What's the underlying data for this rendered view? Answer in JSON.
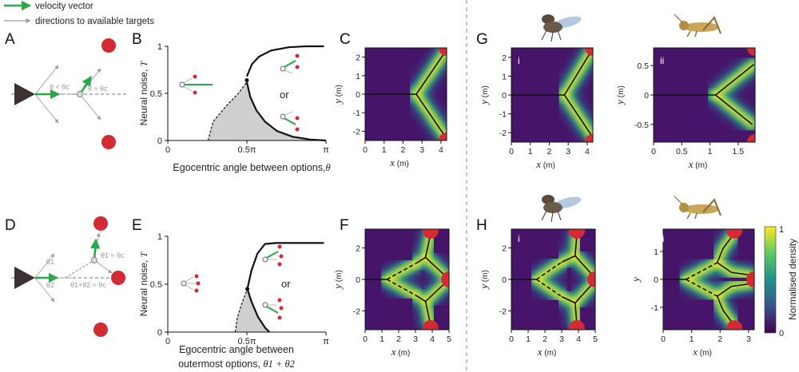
{
  "legend": {
    "velocity": "velocity vector",
    "directions": "directions to available targets",
    "velocity_color": "#2aa84a",
    "directions_color": "#9a9a9a"
  },
  "panels": {
    "A": "A",
    "B": "B",
    "C": "C",
    "D": "D",
    "E": "E",
    "F": "F",
    "G": "G",
    "H": "H",
    "Gi": "i",
    "Gii": "ii",
    "Hi": "i",
    "Hii": "ii"
  },
  "diagramA": {
    "angle_lt": "θ < θc",
    "angle_eq": "θ ≈ θc"
  },
  "diagramD": {
    "theta1": "θ1",
    "theta2": "θ2",
    "theta1_eq": "θ1 ≈ θc",
    "sum_eq": "θ1+θ2 ≈ θc"
  },
  "or_label": "or",
  "target_color": "#d42a35",
  "icons": [
    "fly-icon",
    "locust-icon"
  ],
  "chart_data": [
    {
      "id": "B",
      "type": "line",
      "xlabel": "Egocentric angle between options,",
      "xlabel_symbol": "θ",
      "ylabel": "Neural noise,",
      "ylabel_symbol": "T",
      "x_ticks": [
        "0",
        "0.5π",
        "π"
      ],
      "y_ticks": [
        "0",
        "0.5",
        "1"
      ],
      "xlim": [
        0,
        3.1416
      ],
      "ylim": [
        0,
        1
      ],
      "series": [
        {
          "style": "solid",
          "points": [
            [
              1.57,
              0.68
            ],
            [
              1.67,
              0.81
            ],
            [
              1.81,
              0.89
            ],
            [
              2.05,
              0.955
            ],
            [
              2.4,
              0.99
            ],
            [
              2.75,
              1.0
            ],
            [
              3.1,
              1.0
            ]
          ]
        },
        {
          "style": "solid",
          "points": [
            [
              1.57,
              0.62
            ],
            [
              1.64,
              0.46
            ],
            [
              1.76,
              0.32
            ],
            [
              1.93,
              0.2
            ],
            [
              2.17,
              0.1
            ],
            [
              2.48,
              0.04
            ],
            [
              2.83,
              0.01
            ],
            [
              3.14,
              0.0
            ]
          ]
        },
        {
          "style": "dashed",
          "points": [
            [
              0.8,
              0.0
            ],
            [
              0.9,
              0.2
            ],
            [
              1.15,
              0.36
            ],
            [
              1.4,
              0.5
            ],
            [
              1.57,
              0.62
            ]
          ]
        }
      ],
      "shaded": [
        [
          0.8,
          0.0
        ],
        [
          0.9,
          0.2
        ],
        [
          1.15,
          0.36
        ],
        [
          1.4,
          0.5
        ],
        [
          1.57,
          0.62
        ],
        [
          1.64,
          0.46
        ],
        [
          1.76,
          0.32
        ],
        [
          1.93,
          0.2
        ],
        [
          2.17,
          0.1
        ],
        [
          2.48,
          0.04
        ],
        [
          2.83,
          0.01
        ],
        [
          3.14,
          0.0
        ]
      ],
      "critical_point": [
        1.57,
        0.64
      ]
    },
    {
      "id": "E",
      "type": "line",
      "xlabel": "Egocentric angle between",
      "xlabel2": "outermost options,",
      "xlabel_symbol": "θ1 + θ2",
      "ylabel": "Neural noise,",
      "ylabel_symbol": "T",
      "x_ticks": [
        "0",
        "0.5π",
        "π"
      ],
      "y_ticks": [
        "0",
        "0.5",
        "1"
      ],
      "xlim": [
        0,
        3.1416
      ],
      "ylim": [
        0,
        1
      ],
      "series": [
        {
          "style": "solid",
          "points": [
            [
              1.58,
              0.45
            ],
            [
              1.66,
              0.64
            ],
            [
              1.78,
              0.82
            ],
            [
              1.93,
              0.92
            ],
            [
              2.15,
              0.93
            ],
            [
              2.6,
              0.93
            ],
            [
              3.1,
              0.93
            ]
          ]
        },
        {
          "style": "solid",
          "points": [
            [
              1.58,
              0.45
            ],
            [
              1.66,
              0.32
            ],
            [
              1.79,
              0.16
            ],
            [
              1.94,
              0.04
            ],
            [
              2.02,
              0.0
            ]
          ]
        },
        {
          "style": "dashed",
          "points": [
            [
              1.34,
              0.0
            ],
            [
              1.38,
              0.15
            ],
            [
              1.47,
              0.3
            ],
            [
              1.58,
              0.45
            ]
          ]
        }
      ],
      "shaded": [
        [
          1.34,
          0.0
        ],
        [
          1.38,
          0.15
        ],
        [
          1.47,
          0.3
        ],
        [
          1.58,
          0.45
        ],
        [
          1.66,
          0.32
        ],
        [
          1.79,
          0.16
        ],
        [
          1.94,
          0.04
        ],
        [
          2.02,
          0.0
        ]
      ],
      "critical_point": [
        1.58,
        0.45
      ]
    },
    {
      "id": "C",
      "type": "heatmap",
      "xlabel": "x",
      "xunit": "(m)",
      "ylabel": "y",
      "yunit": "(m)",
      "x_ticks": [
        "0",
        "1",
        "2",
        "3",
        "4"
      ],
      "y_ticks": [
        "-2",
        "-1",
        "0",
        "1",
        "2"
      ],
      "xlim": [
        0,
        4.3
      ],
      "ylim": [
        -2.5,
        2.5
      ],
      "targets": [
        [
          4.3,
          2.5
        ],
        [
          4.3,
          -2.5
        ]
      ],
      "trajectory": {
        "style": "solid",
        "paths": [
          [
            [
              0,
              0
            ],
            [
              2.7,
              0
            ]
          ],
          [
            [
              2.7,
              0
            ],
            [
              4.3,
              2.4
            ]
          ],
          [
            [
              2.7,
              0
            ],
            [
              4.3,
              -2.4
            ]
          ]
        ]
      }
    },
    {
      "id": "F",
      "type": "heatmap",
      "xlabel": "x",
      "xunit": "(m)",
      "ylabel": "y",
      "yunit": "(m)",
      "x_ticks": [
        "0",
        "1",
        "2",
        "3",
        "4",
        "5"
      ],
      "y_ticks": [
        "-2",
        "0",
        "2"
      ],
      "xlim": [
        0,
        5
      ],
      "ylim": [
        -3.2,
        3.2
      ],
      "targets": [
        [
          3.9,
          3.1
        ],
        [
          5.0,
          0
        ],
        [
          3.9,
          -3.1
        ]
      ],
      "trajectory": {
        "paths": [
          {
            "style": "solid",
            "points": [
              [
                0,
                0
              ],
              [
                1.3,
                0
              ]
            ]
          },
          {
            "style": "dashed",
            "points": [
              [
                1.3,
                0
              ],
              [
                3.0,
                1.0
              ]
            ]
          },
          {
            "style": "dashed",
            "points": [
              [
                1.3,
                0
              ],
              [
                3.0,
                -1.0
              ]
            ]
          },
          {
            "style": "solid",
            "points": [
              [
                3.0,
                1.0
              ],
              [
                3.6,
                1.4
              ],
              [
                3.9,
                2.9
              ]
            ]
          },
          {
            "style": "solid",
            "points": [
              [
                3.6,
                1.4
              ],
              [
                4.9,
                0.1
              ]
            ]
          },
          {
            "style": "solid",
            "points": [
              [
                3.0,
                -1.0
              ],
              [
                3.6,
                -1.4
              ],
              [
                3.9,
                -2.9
              ]
            ]
          },
          {
            "style": "solid",
            "points": [
              [
                3.6,
                -1.4
              ],
              [
                4.9,
                -0.1
              ]
            ]
          }
        ]
      }
    },
    {
      "id": "Gi",
      "type": "heatmap",
      "xlabel": "x",
      "xunit": "(m)",
      "ylabel": "y",
      "yunit": "(m)",
      "x_ticks": [
        "0",
        "1",
        "2",
        "3",
        "4"
      ],
      "y_ticks": [
        "-2",
        "-1",
        "0",
        "1",
        "2"
      ],
      "xlim": [
        0,
        4.3
      ],
      "ylim": [
        -2.5,
        2.5
      ],
      "targets": [
        [
          4.3,
          2.5
        ],
        [
          4.3,
          -2.5
        ]
      ],
      "trajectory": {
        "style": "solid",
        "paths": [
          [
            [
              0,
              0
            ],
            [
              2.8,
              0
            ]
          ],
          [
            [
              2.8,
              0
            ],
            [
              4.2,
              2.3
            ]
          ],
          [
            [
              2.8,
              0
            ],
            [
              4.2,
              -2.1
            ]
          ]
        ]
      }
    },
    {
      "id": "Gii",
      "type": "heatmap",
      "xlabel": "x",
      "xunit": "(m)",
      "ylabel": "y",
      "yunit": "(m)",
      "x_ticks": [
        "0",
        "0.5",
        "1",
        "1.5"
      ],
      "y_ticks": [
        "-0.5",
        "0",
        "0.5"
      ],
      "xlim": [
        0,
        1.8
      ],
      "ylim": [
        -0.8,
        0.8
      ],
      "targets": [
        [
          1.8,
          0.8
        ],
        [
          1.8,
          -0.8
        ]
      ],
      "trajectory": {
        "style": "solid",
        "paths": [
          [
            [
              0,
              0
            ],
            [
              1.1,
              0
            ]
          ],
          [
            [
              1.1,
              0
            ],
            [
              1.78,
              0.52
            ]
          ],
          [
            [
              1.1,
              0
            ],
            [
              1.75,
              -0.5
            ]
          ]
        ]
      }
    },
    {
      "id": "Hi",
      "type": "heatmap",
      "xlabel": "x",
      "xunit": "(m)",
      "ylabel": "y",
      "yunit": "(m)",
      "x_ticks": [
        "0",
        "1",
        "2",
        "3",
        "4",
        "5"
      ],
      "y_ticks": [
        "-2",
        "0",
        "2"
      ],
      "xlim": [
        0,
        5
      ],
      "ylim": [
        -3.2,
        3.2
      ],
      "targets": [
        [
          3.9,
          3.1
        ],
        [
          5.0,
          0
        ],
        [
          3.9,
          -3.1
        ]
      ],
      "trajectory": {
        "paths": [
          {
            "style": "solid",
            "points": [
              [
                0,
                0
              ],
              [
                1.5,
                0
              ]
            ]
          },
          {
            "style": "dashed",
            "points": [
              [
                1.5,
                0
              ],
              [
                3.0,
                1.1
              ]
            ]
          },
          {
            "style": "dashed",
            "points": [
              [
                1.5,
                0
              ],
              [
                3.0,
                -1.1
              ]
            ]
          },
          {
            "style": "solid",
            "points": [
              [
                3.0,
                1.1
              ],
              [
                3.8,
                1.5
              ],
              [
                3.9,
                2.8
              ]
            ]
          },
          {
            "style": "solid",
            "points": [
              [
                3.8,
                1.5
              ],
              [
                4.9,
                0.2
              ]
            ]
          },
          {
            "style": "solid",
            "points": [
              [
                3.0,
                -1.1
              ],
              [
                3.8,
                -1.5
              ],
              [
                3.9,
                -2.8
              ]
            ]
          },
          {
            "style": "solid",
            "points": [
              [
                3.8,
                -1.5
              ],
              [
                4.9,
                -0.2
              ]
            ]
          }
        ]
      }
    },
    {
      "id": "Hii",
      "type": "heatmap",
      "xlabel": "x",
      "xunit": "(m)",
      "ylabel": "y",
      "yunit": "",
      "x_ticks": [
        "0",
        "1",
        "2",
        "3"
      ],
      "y_ticks": [
        "-1",
        "0",
        "1"
      ],
      "xlim": [
        0,
        3.2
      ],
      "ylim": [
        -1.8,
        1.8
      ],
      "targets": [
        [
          2.5,
          1.75
        ],
        [
          3.2,
          0
        ],
        [
          2.5,
          -1.75
        ]
      ],
      "trajectory": {
        "paths": [
          {
            "style": "solid",
            "points": [
              [
                0,
                0
              ],
              [
                0.8,
                0
              ]
            ]
          },
          {
            "style": "dashed",
            "points": [
              [
                0.8,
                0
              ],
              [
                1.9,
                0.6
              ]
            ]
          },
          {
            "style": "dashed",
            "points": [
              [
                0.8,
                0
              ],
              [
                1.9,
                -0.6
              ]
            ]
          },
          {
            "style": "solid",
            "points": [
              [
                1.9,
                0.6
              ],
              [
                2.1,
                1.1
              ],
              [
                2.5,
                1.65
              ]
            ]
          },
          {
            "style": "solid",
            "points": [
              [
                1.9,
                0.6
              ],
              [
                2.4,
                0.25
              ],
              [
                3.1,
                0.15
              ]
            ]
          },
          {
            "style": "solid",
            "points": [
              [
                1.9,
                -0.6
              ],
              [
                2.1,
                -1.1
              ],
              [
                2.5,
                -1.65
              ]
            ]
          },
          {
            "style": "solid",
            "points": [
              [
                1.9,
                -0.6
              ],
              [
                2.4,
                -0.25
              ],
              [
                3.1,
                -0.15
              ]
            ]
          }
        ]
      }
    },
    {
      "id": "colorbar",
      "type": "colorbar",
      "label": "Normalised density",
      "ticks": [
        "0",
        "1"
      ],
      "colormap": "viridis"
    }
  ]
}
